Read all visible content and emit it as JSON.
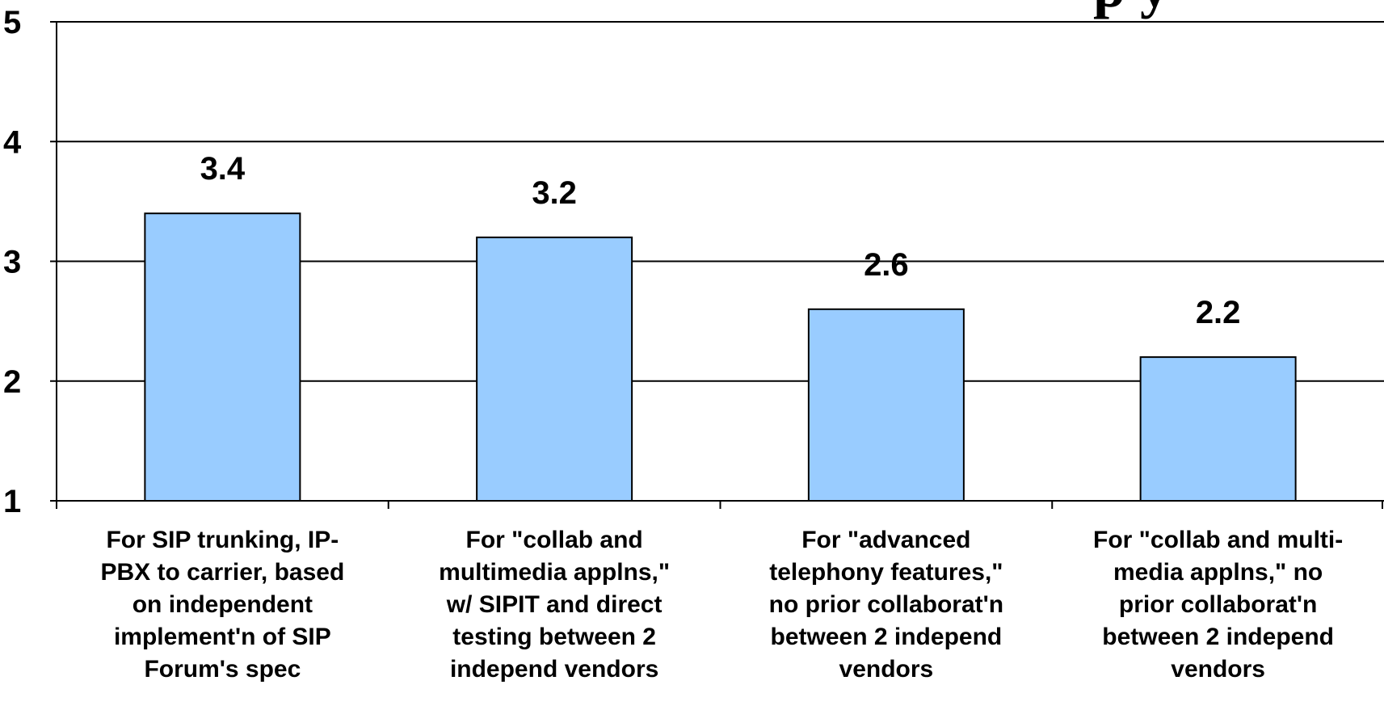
{
  "chart_data": {
    "type": "bar",
    "title_fragment": "p y",
    "categories": [
      "For SIP trunking, IP-\nPBX to carrier, based\non independent\nimplement'n of SIP\nForum's spec",
      "For \"collab and\nmultimedia applns,\"\nw/ SIPIT and direct\ntesting between 2\nindepend vendors",
      "For \"advanced\ntelephony features,\"\nno prior collaborat'n\nbetween 2 independ\nvendors",
      "For \"collab and multi-\nmedia applns,\" no\nprior collaborat'n\nbetween 2 independ\nvendors"
    ],
    "values": [
      3.4,
      3.2,
      2.6,
      2.2
    ],
    "data_labels": [
      "3.4",
      "3.2",
      "2.6",
      "2.2"
    ],
    "ylim": [
      1,
      5
    ],
    "yticks": [
      "1",
      "2",
      "3",
      "4",
      "5"
    ],
    "grid": true,
    "bar_color": "#99ccff",
    "bar_edge_color": "#000000"
  }
}
